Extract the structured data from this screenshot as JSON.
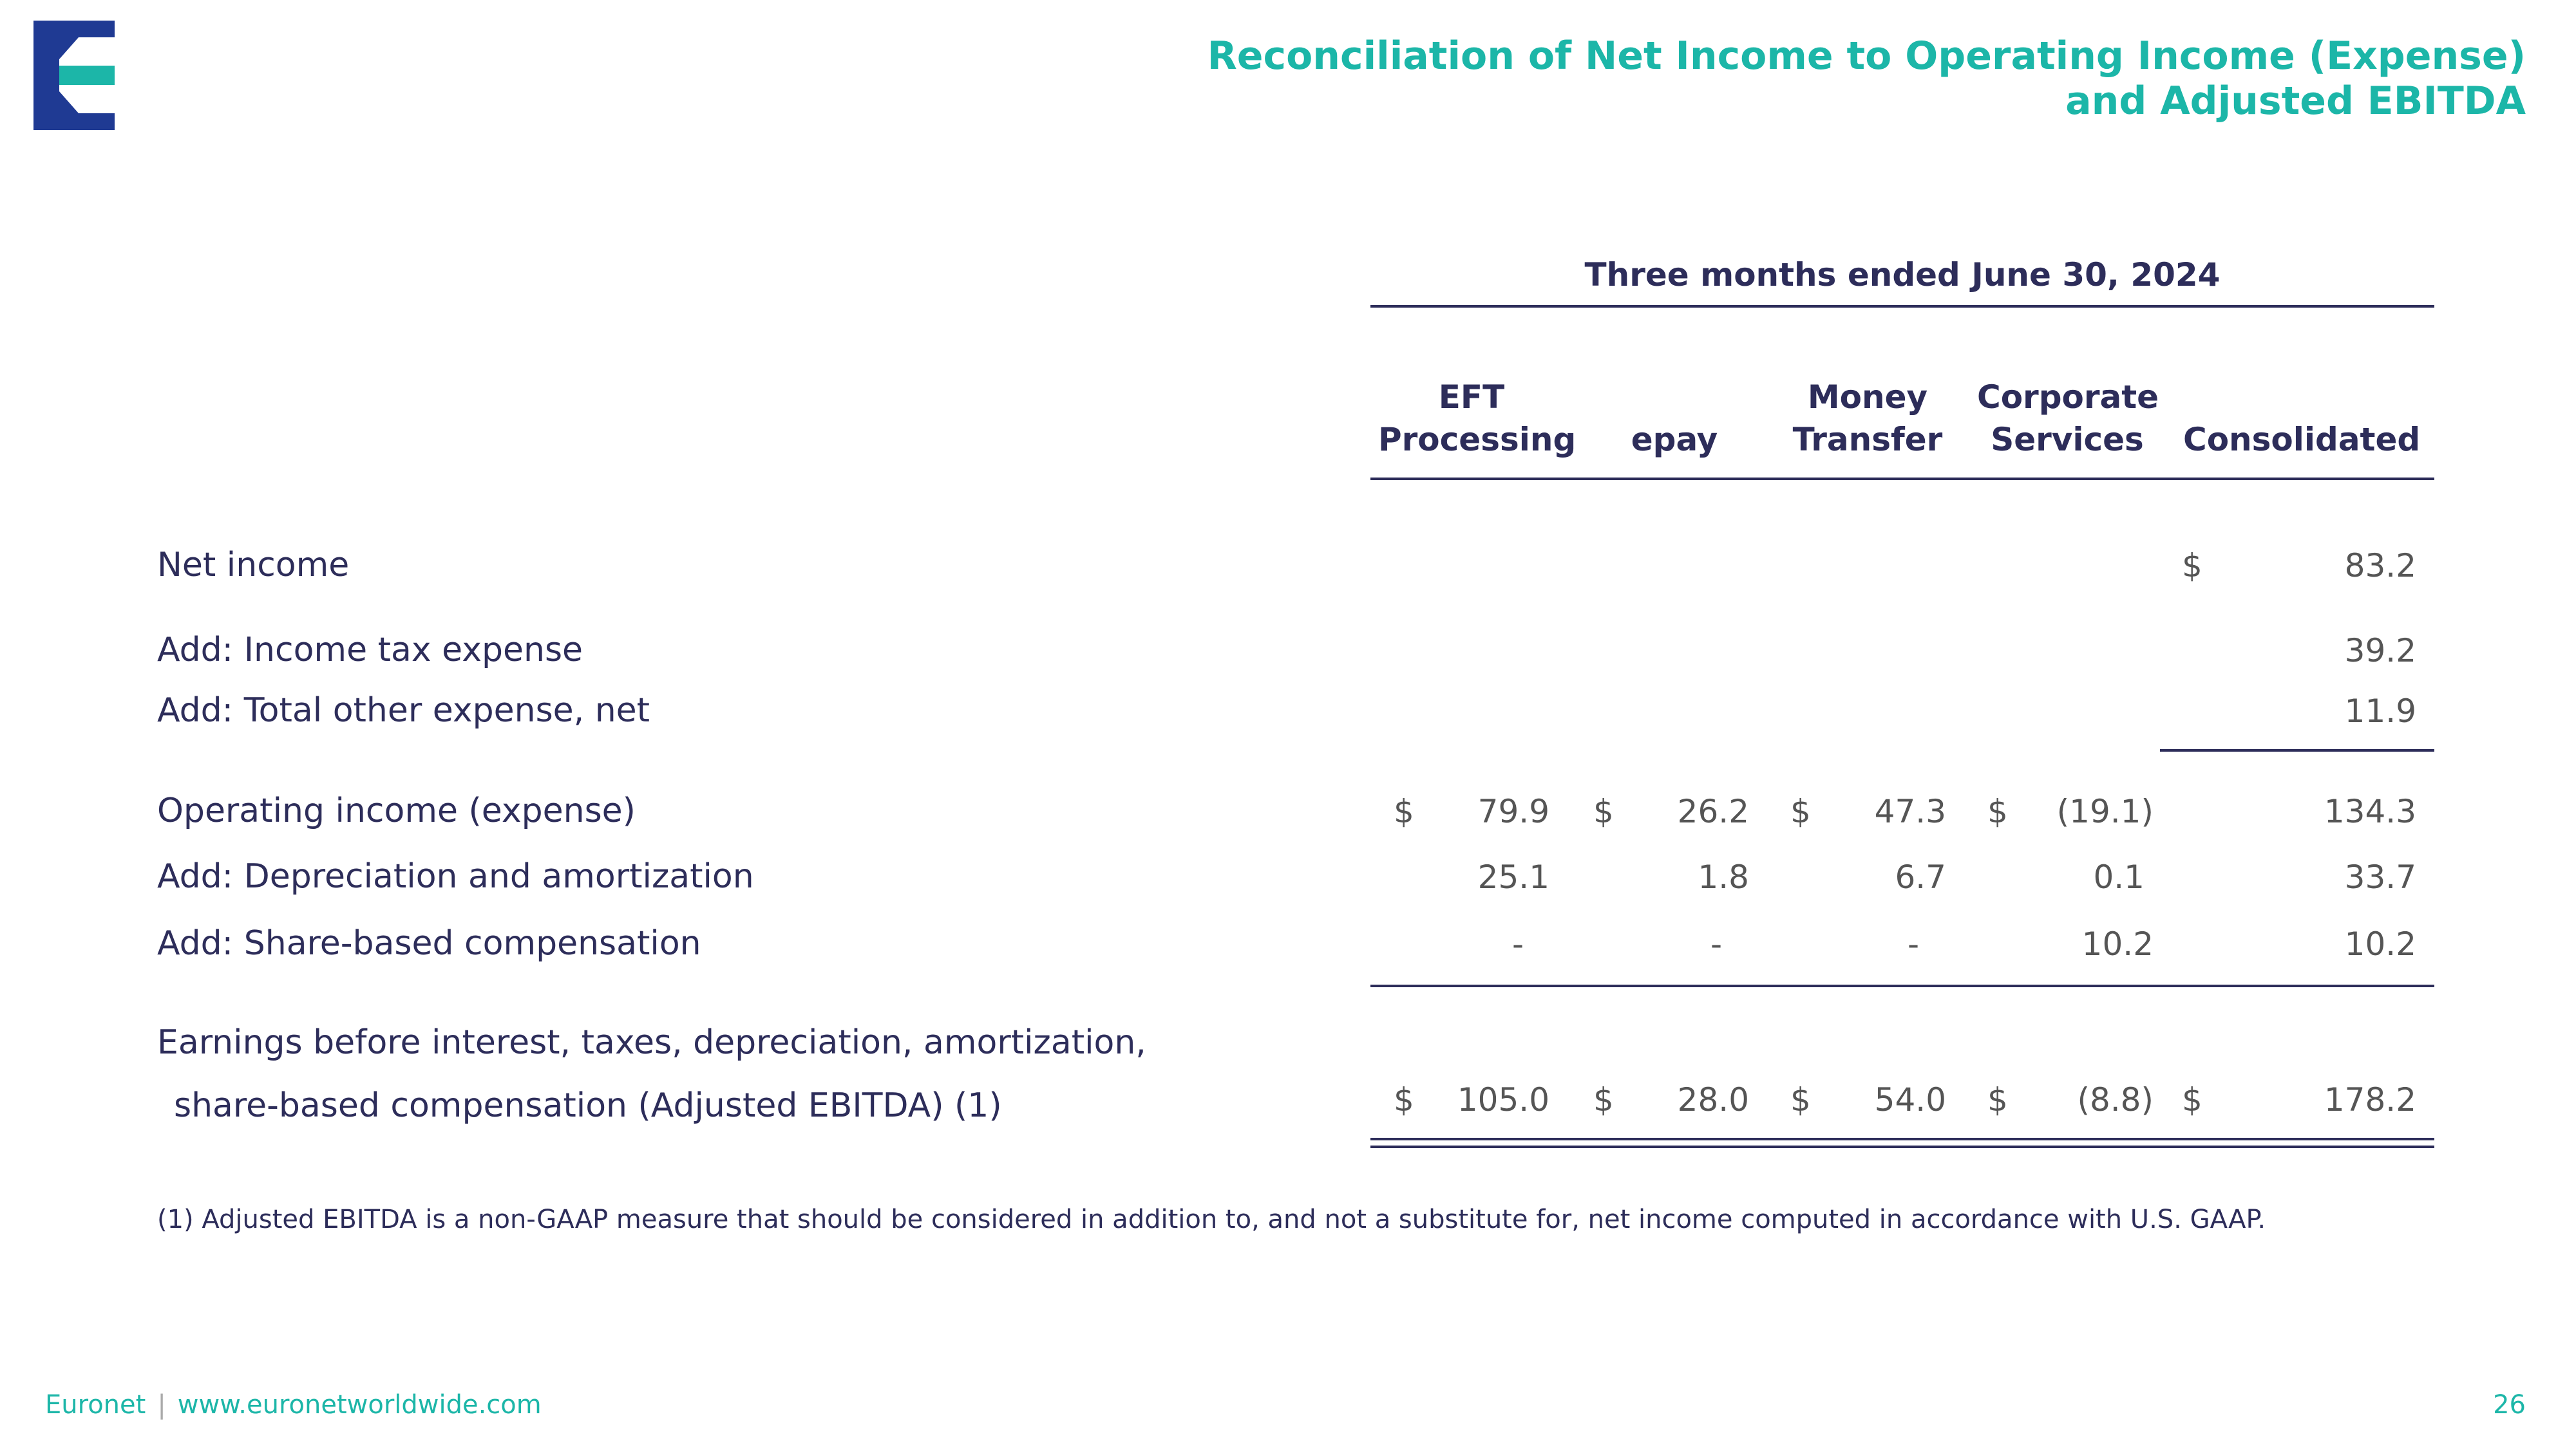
{
  "title": {
    "line1": "Reconciliation of Net Income to Operating Income (Expense)",
    "line2": "and Adjusted EBITDA"
  },
  "period": "Three months ended June 30, 2024",
  "columns": [
    {
      "line1": "EFT",
      "line2": "Processing"
    },
    {
      "line1": "",
      "line2": "epay"
    },
    {
      "line1": "Money",
      "line2": "Transfer"
    },
    {
      "line1": "Corporate",
      "line2": "Services"
    },
    {
      "line1": "",
      "line2": "Consolidated"
    }
  ],
  "currency_symbol": "$",
  "rows": {
    "net_income": {
      "label": "Net income",
      "consolidated": "83.2"
    },
    "income_tax": {
      "label": "Add: Income tax expense",
      "consolidated": "39.2"
    },
    "other_expense": {
      "label": "Add: Total other expense, net",
      "consolidated": "11.9"
    },
    "operating_income": {
      "label": "Operating income (expense)",
      "values": [
        "79.9",
        "26.2",
        "47.3",
        "(19.1)",
        "134.3"
      ]
    },
    "depreciation": {
      "label": "Add: Depreciation and amortization",
      "values": [
        "25.1",
        "1.8",
        "6.7",
        "0.1",
        "33.7"
      ]
    },
    "share_based": {
      "label": "Add: Share-based compensation",
      "values": [
        "-",
        "-",
        "-",
        "10.2",
        "10.2"
      ]
    },
    "ebitda": {
      "label_line1": "Earnings before interest, taxes, depreciation, amortization,",
      "label_line2": "share-based compensation (Adjusted EBITDA) (1)",
      "values": [
        "105.0",
        "28.0",
        "54.0",
        "(8.8)",
        "178.2"
      ]
    }
  },
  "footnote": "(1)  Adjusted EBITDA is a non-GAAP measure that should be considered in addition to, and not a substitute for, net income computed in accordance with U.S. GAAP.",
  "footer": {
    "brand": "Euronet",
    "separator": "|",
    "url": "www.euronetworldwide.com"
  },
  "page_number": "26",
  "colors": {
    "navy": "#2d2d5a",
    "teal": "#1cb6a8",
    "logo_blue": "#1f3a93"
  },
  "logo_icon": "euronet-e-logo-icon"
}
